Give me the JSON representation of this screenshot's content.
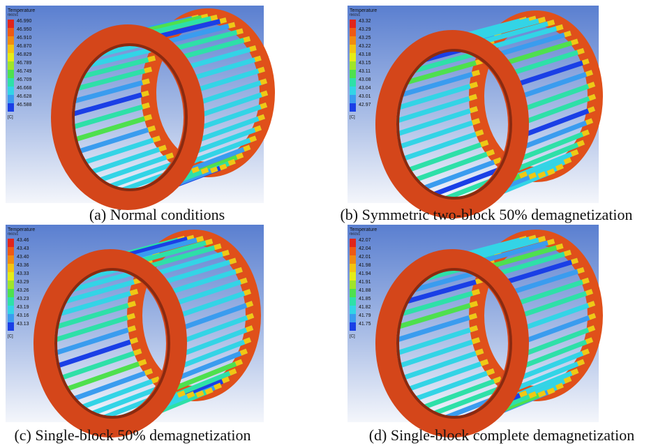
{
  "panels": [
    {
      "caption": "(a) Normal conditions",
      "legend": {
        "title": "Temperature",
        "subtitle": "raozu1",
        "labels": [
          "46.990",
          "46.950",
          "46.910",
          "46.870",
          "46.829",
          "46.789",
          "46.749",
          "46.709",
          "46.668",
          "46.628",
          "46.588"
        ],
        "unit": "[C]"
      }
    },
    {
      "caption": "(b) Symmetric two-block 50% demagnetization",
      "legend": {
        "title": "Temperature",
        "subtitle": "raozu1",
        "labels": [
          "43.32",
          "43.29",
          "43.25",
          "43.22",
          "43.18",
          "43.15",
          "43.11",
          "43.08",
          "43.04",
          "43.01",
          "42.97"
        ],
        "unit": "[C]"
      }
    },
    {
      "caption": "(c) Single-block 50% demagnetization",
      "legend": {
        "title": "Temperature",
        "subtitle": "raozu1",
        "labels": [
          "43.46",
          "43.43",
          "43.40",
          "43.36",
          "43.33",
          "43.29",
          "43.26",
          "43.23",
          "43.19",
          "43.16",
          "43.13"
        ],
        "unit": "[C]"
      }
    },
    {
      "caption": "(d) Single-block complete demagnetization",
      "legend": {
        "title": "Temperature",
        "subtitle": "raozu1",
        "labels": [
          "42.07",
          "42.04",
          "42.01",
          "41.98",
          "41.94",
          "41.91",
          "41.88",
          "41.85",
          "41.82",
          "41.79",
          "41.75"
        ],
        "unit": "[C]"
      }
    }
  ]
}
